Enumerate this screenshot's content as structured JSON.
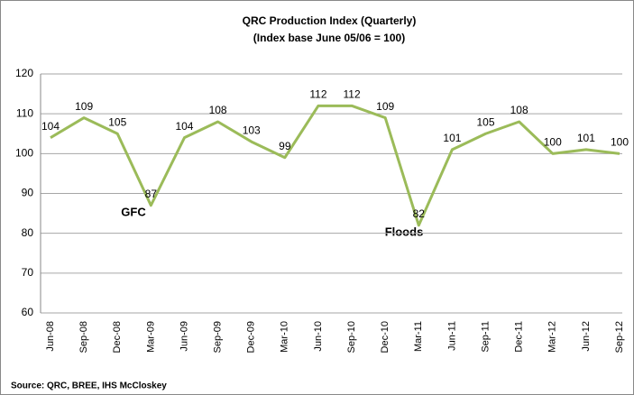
{
  "chart_data": {
    "type": "line",
    "title": "QRC Production Index (Quarterly)",
    "subtitle": "(Index base June 05/06 = 100)",
    "categories": [
      "Jun-08",
      "Sep-08",
      "Dec-08",
      "Mar-09",
      "Jun-09",
      "Sep-09",
      "Dec-09",
      "Mar-10",
      "Jun-10",
      "Sep-10",
      "Dec-10",
      "Mar-11",
      "Jun-11",
      "Sep-11",
      "Dec-11",
      "Mar-12",
      "Jun-12",
      "Sep-12"
    ],
    "values": [
      104,
      109,
      105,
      87,
      104,
      108,
      103,
      99,
      112,
      112,
      109,
      82,
      101,
      105,
      108,
      100,
      101,
      100
    ],
    "color": "#9bbb59",
    "ylim": [
      60,
      120
    ],
    "yticks": [
      60,
      70,
      80,
      90,
      100,
      110,
      120
    ],
    "grid": true,
    "annotations": [
      "GFC",
      "Floods"
    ],
    "source": "Source: QRC, BREE, IHS McCloskey"
  }
}
